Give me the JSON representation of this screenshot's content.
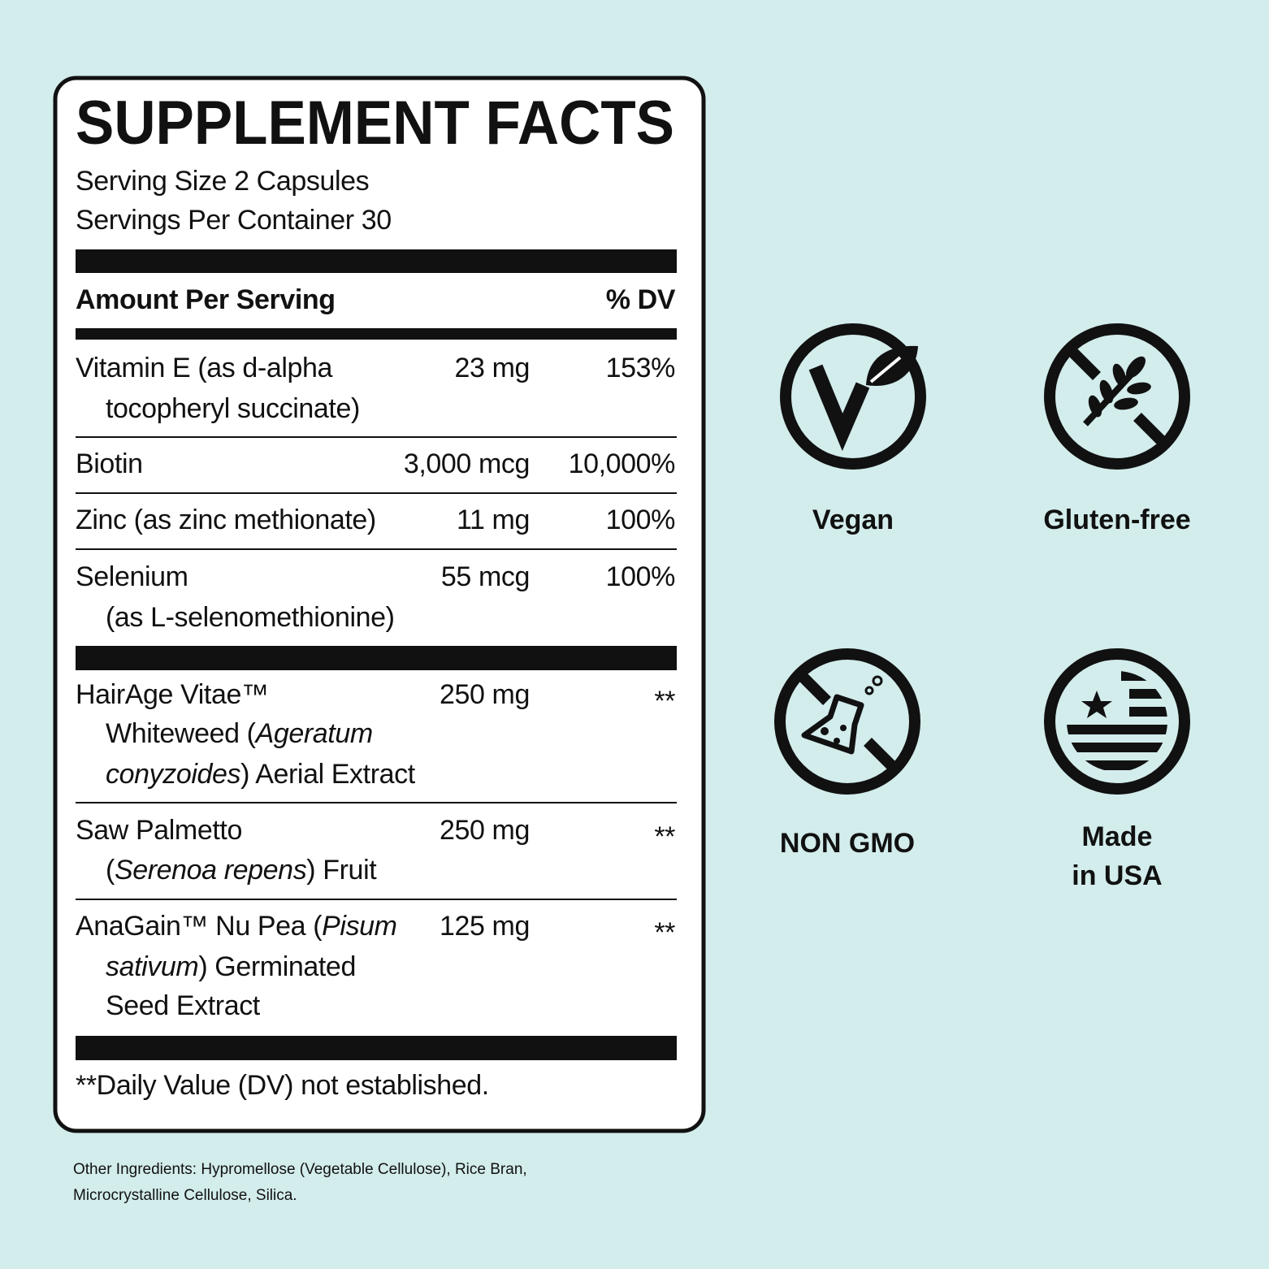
{
  "header": {
    "title": "SUPPLEMENT FACTS",
    "serving_size": "Serving Size 2 Capsules",
    "servings_per_container": "Servings Per Container 30"
  },
  "table": {
    "columns": [
      "Amount Per Serving",
      "% DV"
    ],
    "rows": [
      {
        "name": [
          [
            {
              "text": "Vitamin E (as d-alpha"
            }
          ],
          [
            {
              "text": "tocopheryl succinate)"
            }
          ]
        ],
        "amount": "23 mg",
        "dv": "153%"
      },
      {
        "name": [
          [
            {
              "text": "Biotin"
            }
          ]
        ],
        "amount": "3,000 mcg",
        "dv": "10,000%"
      },
      {
        "name": [
          [
            {
              "text": "Zinc (as zinc methionate)"
            }
          ]
        ],
        "amount": "11 mg",
        "dv": "100%"
      },
      {
        "name": [
          [
            {
              "text": "Selenium"
            }
          ],
          [
            {
              "text": "(as L-selenomethionine)"
            }
          ]
        ],
        "amount": "55 mcg",
        "dv": "100%"
      },
      {
        "name": [
          [
            {
              "text": "HairAge Vitae™"
            }
          ],
          [
            {
              "text": "Whiteweed ("
            },
            {
              "text": "Ageratum",
              "italic": true
            }
          ],
          [
            {
              "text": "conyzoides",
              "italic": true
            },
            {
              "text": ") Aerial Extract"
            }
          ]
        ],
        "amount": "250 mg",
        "dv": "**"
      },
      {
        "name": [
          [
            {
              "text": "Saw Palmetto"
            }
          ],
          [
            {
              "text": "("
            },
            {
              "text": "Serenoa repens",
              "italic": true
            },
            {
              "text": ") Fruit"
            }
          ]
        ],
        "amount": "250 mg",
        "dv": "**"
      },
      {
        "name": [
          [
            {
              "text": "AnaGain™ Nu Pea ("
            },
            {
              "text": "Pisum",
              "italic": true
            }
          ],
          [
            {
              "text": "sativum",
              "italic": true
            },
            {
              "text": ") Germinated"
            }
          ],
          [
            {
              "text": "Seed Extract"
            }
          ]
        ],
        "amount": "125 mg",
        "dv": "**"
      }
    ]
  },
  "footnote": "**Daily Value (DV) not established.",
  "other_ingredients": [
    "Other Ingredients: Hypromellose (Vegetable Cellulose), Rice Bran,",
    "Microcrystalline Cellulose, Silica."
  ],
  "badges": [
    {
      "label": [
        "Vegan"
      ]
    },
    {
      "label": [
        "Gluten-free"
      ]
    },
    {
      "label": [
        "NON GMO"
      ]
    },
    {
      "label": [
        "Made",
        "in USA"
      ]
    }
  ]
}
